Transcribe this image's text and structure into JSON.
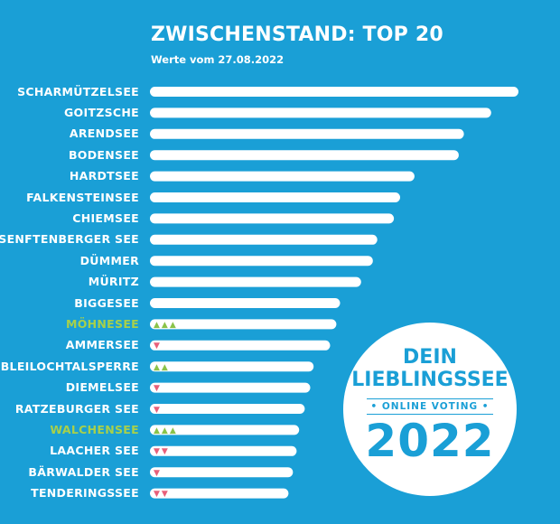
{
  "chart_data": {
    "type": "bar",
    "orientation": "horizontal",
    "title": "ZWISCHENSTAND: TOP 20",
    "subtitle": "Werte vom 27.08.2022",
    "categories": [
      "SCHARMÜTZELSEE",
      "GOITZSCHE",
      "ARENDSEE",
      "BODENSEE",
      "HARDTSEE",
      "FALKENSTEINSEE",
      "CHIEMSEE",
      "SENFTENBERGER SEE",
      "DÜMMER",
      "MÜRITZ",
      "BIGGESEE",
      "MÖHNESEE",
      "AMMERSEE",
      "BLEILOCHTALSPERRE",
      "DIEMELSEE",
      "RATZEBURGER SEE",
      "WALCHENSEE",
      "LAACHER SEE",
      "BÄRWALDER SEE",
      "TENDERINGSSEE"
    ],
    "values": [
      100,
      92.6,
      85.2,
      83.8,
      71.8,
      67.9,
      66.2,
      61.7,
      60.5,
      57.3,
      51.6,
      50.6,
      48.9,
      44.4,
      43.5,
      42.0,
      40.5,
      39.8,
      38.8,
      37.6
    ],
    "highlighted": [
      "MÖHNESEE",
      "WALCHENSEE"
    ],
    "trend_marks": [
      {
        "category": "MÖHNESEE",
        "text": "▲▲▲",
        "dir": "up"
      },
      {
        "category": "AMMERSEE",
        "text": "▼",
        "dir": "down"
      },
      {
        "category": "BLEILOCHTALSPERRE",
        "text": "▲▲",
        "dir": "up"
      },
      {
        "category": "DIEMELSEE",
        "text": "▼",
        "dir": "down"
      },
      {
        "category": "RATZEBURGER SEE",
        "text": "▼",
        "dir": "down"
      },
      {
        "category": "WALCHENSEE",
        "text": "▲▲▲",
        "dir": "up"
      },
      {
        "category": "LAACHER SEE",
        "text": "▼▼",
        "dir": "down"
      },
      {
        "category": "BÄRWALDER SEE",
        "text": "▼",
        "dir": "down"
      },
      {
        "category": "TENDERINGSSEE",
        "text": "▼▼",
        "dir": "down"
      }
    ],
    "xlim": [
      0,
      100
    ],
    "grid": false,
    "legend": "none"
  },
  "badge": {
    "line1": "DEIN",
    "line2": "LIEBLINGSSEE",
    "line3": "• ONLINE VOTING •",
    "year": "2022"
  },
  "colors": {
    "background": "#1a9fd6",
    "bar": "#ffffff",
    "label": "#ffffff",
    "highlight_label": "#a8d04a",
    "trend_up": "#8bc34a",
    "trend_down": "#e8607a",
    "badge_fill": "#ffffff",
    "badge_text": "#1a9fd6"
  }
}
